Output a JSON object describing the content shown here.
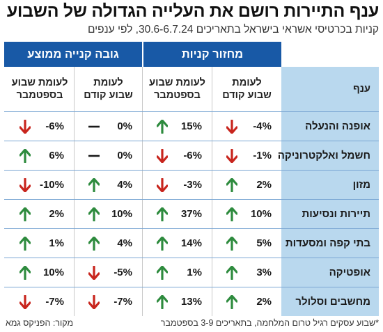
{
  "title": "ענף התיירות רושם את העלייה הגדולה של השבוע",
  "subtitle": "קניות בכרטיסי אשראי בישראל בתאריכים 30.6-6.7.24, לפי ענפים",
  "groups": {
    "turnover": "מחזור קניות",
    "average": "גובה קנייה ממוצע"
  },
  "headers": {
    "branch": "ענף",
    "turnover_prev": "לעומת\nשבוע קודם",
    "turnover_sept": "לעומת שבוע\nבספטמבר",
    "average_prev": "לעומת\nשבוע קודם",
    "average_sept": "לעומת שבוע\nבספטמבר"
  },
  "colors": {
    "header_blue": "#1859a6",
    "branch_bg": "#b9d8ee",
    "up": "#2e8b3e",
    "down": "#c8251d",
    "flat": "#1a1a1a"
  },
  "rows": [
    {
      "branch": "אופנה והנעלה",
      "turnover_prev": "-4%",
      "turnover_prev_dir": "down",
      "turnover_sept": "15%",
      "turnover_sept_dir": "up",
      "average_prev": "0%",
      "average_prev_dir": "flat",
      "average_sept": "-6%",
      "average_sept_dir": "down"
    },
    {
      "branch": "חשמל ואלקטרוניקה",
      "turnover_prev": "-1%",
      "turnover_prev_dir": "down",
      "turnover_sept": "-6%",
      "turnover_sept_dir": "down",
      "average_prev": "0%",
      "average_prev_dir": "flat",
      "average_sept": "6%",
      "average_sept_dir": "up"
    },
    {
      "branch": "מזון",
      "turnover_prev": "2%",
      "turnover_prev_dir": "up",
      "turnover_sept": "-3%",
      "turnover_sept_dir": "down",
      "average_prev": "4%",
      "average_prev_dir": "up",
      "average_sept": "-10%",
      "average_sept_dir": "down"
    },
    {
      "branch": "תיירות ונסיעות",
      "turnover_prev": "10%",
      "turnover_prev_dir": "up",
      "turnover_sept": "37%",
      "turnover_sept_dir": "up",
      "average_prev": "10%",
      "average_prev_dir": "up",
      "average_sept": "2%",
      "average_sept_dir": "up"
    },
    {
      "branch": "בתי קפה ומסעדות",
      "turnover_prev": "5%",
      "turnover_prev_dir": "up",
      "turnover_sept": "14%",
      "turnover_sept_dir": "up",
      "average_prev": "4%",
      "average_prev_dir": "up",
      "average_sept": "1%",
      "average_sept_dir": "up"
    },
    {
      "branch": "אופטיקה",
      "turnover_prev": "3%",
      "turnover_prev_dir": "up",
      "turnover_sept": "1%",
      "turnover_sept_dir": "up",
      "average_prev": "-5%",
      "average_prev_dir": "down",
      "average_sept": "10%",
      "average_sept_dir": "up"
    },
    {
      "branch": "מחשבים וסלולר",
      "turnover_prev": "2%",
      "turnover_prev_dir": "up",
      "turnover_sept": "13%",
      "turnover_sept_dir": "up",
      "average_prev": "-7%",
      "average_prev_dir": "down",
      "average_sept": "-7%",
      "average_sept_dir": "down"
    }
  ],
  "footnote": "*שבוע עסקים רגיל טרום המלחמה, בתאריכים 3-9 בספטמבר",
  "source": "מקור: הפניקס גמא"
}
